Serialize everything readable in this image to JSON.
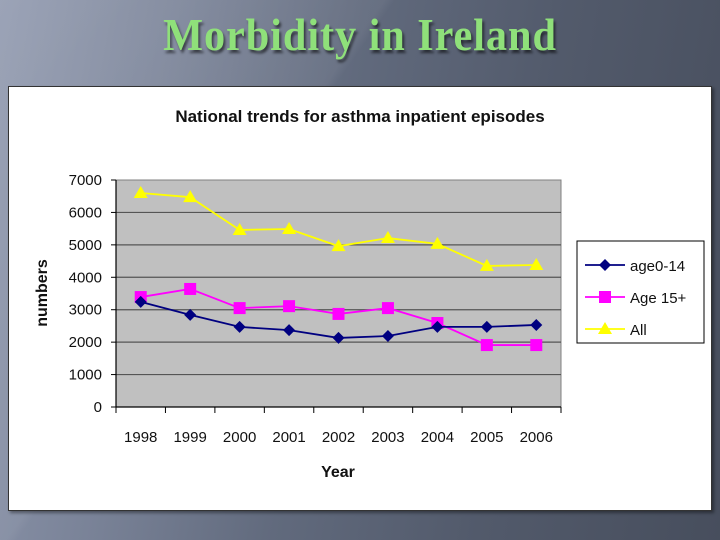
{
  "slide": {
    "title": "Morbidity in Ireland"
  },
  "colors": {
    "plot_background": "#c0c0c0",
    "gridline": "#555555",
    "title_green": "#8fe07a"
  },
  "chart_data": {
    "type": "line",
    "title": "National trends for asthma inpatient episodes",
    "xlabel": "Year",
    "ylabel": "numbers",
    "categories": [
      "1998",
      "1999",
      "2000",
      "2001",
      "2002",
      "2003",
      "2004",
      "2005",
      "2006"
    ],
    "ylim": [
      0,
      7000
    ],
    "yticks": [
      0,
      1000,
      2000,
      3000,
      4000,
      5000,
      6000,
      7000
    ],
    "grid": true,
    "legend_position": "right",
    "series": [
      {
        "name": "age0-14",
        "color": "#000080",
        "marker": "diamond",
        "values": [
          3240,
          2840,
          2470,
          2370,
          2130,
          2190,
          2470,
          2470,
          2530
        ]
      },
      {
        "name": "Age 15+",
        "color": "#ff00ff",
        "marker": "square",
        "values": [
          3390,
          3640,
          3050,
          3110,
          2870,
          3050,
          2590,
          1910,
          1910
        ]
      },
      {
        "name": "All",
        "color": "#ffff00",
        "marker": "triangle",
        "values": [
          6600,
          6470,
          5460,
          5490,
          4960,
          5210,
          5030,
          4350,
          4380
        ]
      }
    ]
  }
}
